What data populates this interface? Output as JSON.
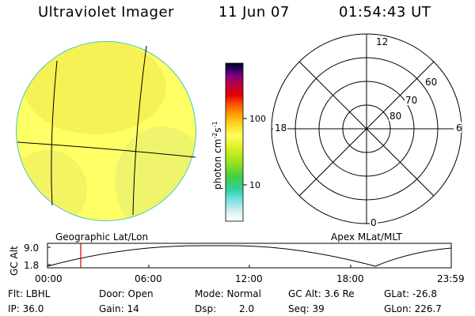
{
  "header": {
    "instrument": "Ultraviolet Imager",
    "date": "11 Jun 07",
    "time": "01:54:43 UT"
  },
  "colorbar": {
    "unit": "photon cm",
    "unit_exp1": "-2",
    "unit_s": "s",
    "unit_exp2": "-1",
    "tick_100": "100",
    "tick_10": "10"
  },
  "polar_plot": {
    "mlt_top": "12",
    "mlt_left": "18",
    "mlt_right": "6",
    "mlt_bottom": "0",
    "lat_60": "60",
    "lat_70": "70",
    "lat_80": "80"
  },
  "labels": {
    "left_panel": "Geographic Lat/Lon",
    "right_panel": "Apex MLat/MLT"
  },
  "altitude_plot": {
    "ylabel": "GC Alt",
    "ytick_high": "9.0",
    "ytick_low": "1.8",
    "xticks": [
      "00:00",
      "06:00",
      "12:00",
      "18:00",
      "23:59"
    ],
    "current_marker_time": "01:54:43"
  },
  "status": {
    "flt": "Flt: LBHL",
    "ip": "IP: 36.0",
    "door": "Door: Open",
    "gain": "Gain: 14",
    "mode": "Mode: Normal",
    "dsp_label": "Dsp:",
    "dsp_value": "2.0",
    "gcalt": "GC Alt: 3.6 Re",
    "seq": "Seq: 39",
    "glat": "GLat: -26.8",
    "glon": "GLon: 226.7"
  },
  "colors": {
    "disk_main": "#ffff66",
    "disk_shade": "#f0f040",
    "disk_rim": "#40c8c0",
    "marker": "#cc0000"
  }
}
